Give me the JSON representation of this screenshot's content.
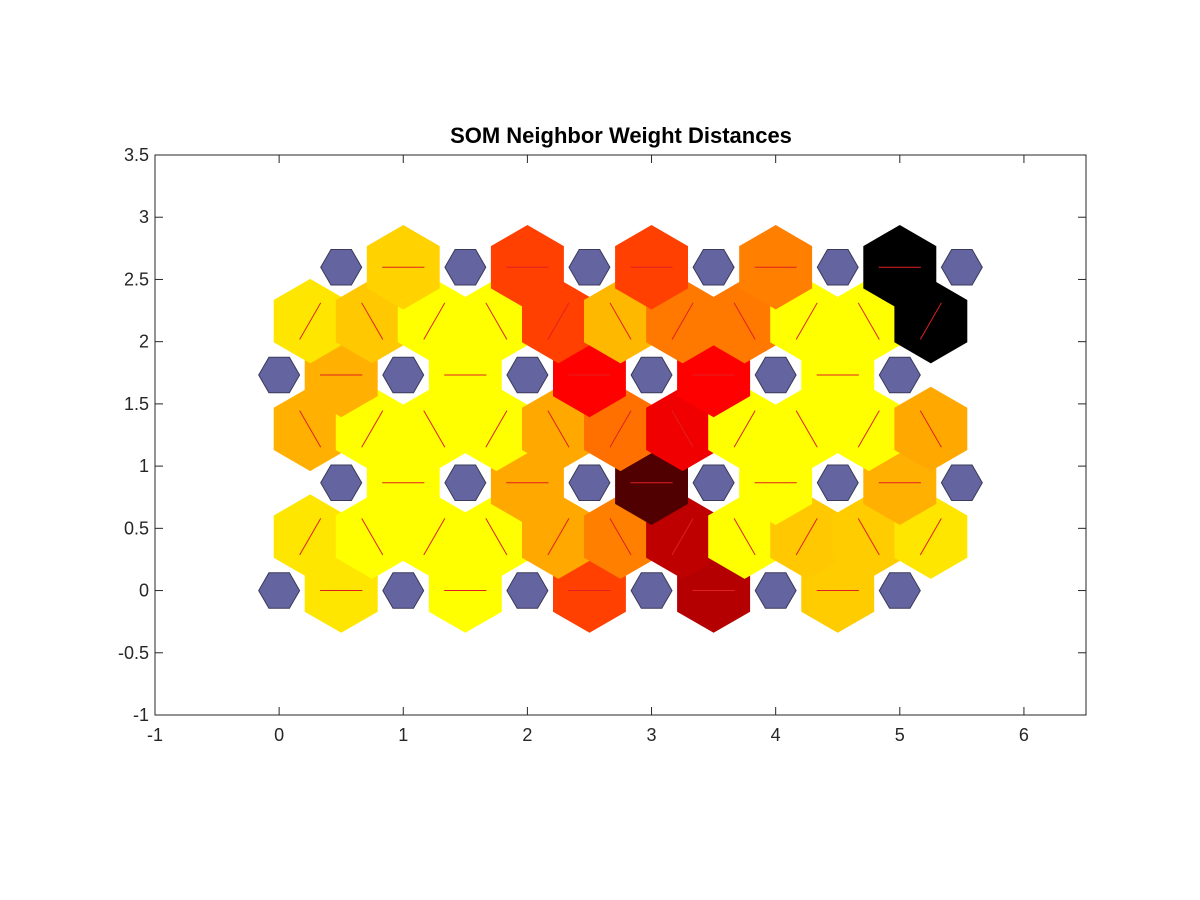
{
  "chart_data": {
    "type": "heatmap",
    "title": "SOM Neighbor Weight Distances",
    "xlabel": "",
    "ylabel": "",
    "xlim": [
      -1,
      6.5
    ],
    "ylim": [
      -1,
      3.5
    ],
    "x_ticks": [
      "-1",
      "0",
      "1",
      "2",
      "3",
      "4",
      "5",
      "6"
    ],
    "y_ticks": [
      "-1",
      "-0.5",
      "0",
      "0.5",
      "1",
      "1.5",
      "2",
      "2.5",
      "3",
      "3.5"
    ],
    "grid": false,
    "neuron_color": "#6464a0",
    "connection_line_color": "#e02020",
    "neurons": [
      {
        "x": 0,
        "y": 0
      },
      {
        "x": 1,
        "y": 0
      },
      {
        "x": 2,
        "y": 0
      },
      {
        "x": 3,
        "y": 0
      },
      {
        "x": 4,
        "y": 0
      },
      {
        "x": 5,
        "y": 0
      },
      {
        "x": 0.5,
        "y": 0.866
      },
      {
        "x": 1.5,
        "y": 0.866
      },
      {
        "x": 2.5,
        "y": 0.866
      },
      {
        "x": 3.5,
        "y": 0.866
      },
      {
        "x": 4.5,
        "y": 0.866
      },
      {
        "x": 5.5,
        "y": 0.866
      },
      {
        "x": 0,
        "y": 1.732
      },
      {
        "x": 1,
        "y": 1.732
      },
      {
        "x": 2,
        "y": 1.732
      },
      {
        "x": 3,
        "y": 1.732
      },
      {
        "x": 4,
        "y": 1.732
      },
      {
        "x": 5,
        "y": 1.732
      },
      {
        "x": 0.5,
        "y": 2.598
      },
      {
        "x": 1.5,
        "y": 2.598
      },
      {
        "x": 2.5,
        "y": 2.598
      },
      {
        "x": 3.5,
        "y": 2.598
      },
      {
        "x": 4.5,
        "y": 2.598
      },
      {
        "x": 5.5,
        "y": 2.598
      }
    ],
    "connections": [
      {
        "x1": 0,
        "y1": 0,
        "x2": 1,
        "y2": 0,
        "color": "#ffe600"
      },
      {
        "x1": 1,
        "y1": 0,
        "x2": 2,
        "y2": 0,
        "color": "#ffff00"
      },
      {
        "x1": 2,
        "y1": 0,
        "x2": 3,
        "y2": 0,
        "color": "#ff4000"
      },
      {
        "x1": 3,
        "y1": 0,
        "x2": 4,
        "y2": 0,
        "color": "#b40000"
      },
      {
        "x1": 4,
        "y1": 0,
        "x2": 5,
        "y2": 0,
        "color": "#ffcc00"
      },
      {
        "x1": 0,
        "y1": 0,
        "x2": 0.5,
        "y2": 0.866,
        "color": "#ffe600"
      },
      {
        "x1": 1,
        "y1": 0,
        "x2": 0.5,
        "y2": 0.866,
        "color": "#ffff00"
      },
      {
        "x1": 1,
        "y1": 0,
        "x2": 1.5,
        "y2": 0.866,
        "color": "#ffff00"
      },
      {
        "x1": 2,
        "y1": 0,
        "x2": 1.5,
        "y2": 0.866,
        "color": "#ffff00"
      },
      {
        "x1": 2,
        "y1": 0,
        "x2": 2.5,
        "y2": 0.866,
        "color": "#ffa800"
      },
      {
        "x1": 3,
        "y1": 0,
        "x2": 2.5,
        "y2": 0.866,
        "color": "#ff7f00"
      },
      {
        "x1": 3,
        "y1": 0,
        "x2": 3.5,
        "y2": 0.866,
        "color": "#bf0000"
      },
      {
        "x1": 4,
        "y1": 0,
        "x2": 3.5,
        "y2": 0.866,
        "color": "#ffff00"
      },
      {
        "x1": 4,
        "y1": 0,
        "x2": 4.5,
        "y2": 0.866,
        "color": "#ffc800"
      },
      {
        "x1": 5,
        "y1": 0,
        "x2": 4.5,
        "y2": 0.866,
        "color": "#ffcc00"
      },
      {
        "x1": 5,
        "y1": 0,
        "x2": 5.5,
        "y2": 0.866,
        "color": "#ffe600"
      },
      {
        "x1": 0.5,
        "y1": 0.866,
        "x2": 1.5,
        "y2": 0.866,
        "color": "#ffff00"
      },
      {
        "x1": 1.5,
        "y1": 0.866,
        "x2": 2.5,
        "y2": 0.866,
        "color": "#ffa800"
      },
      {
        "x1": 2.5,
        "y1": 0.866,
        "x2": 3.5,
        "y2": 0.866,
        "color": "#500000"
      },
      {
        "x1": 3.5,
        "y1": 0.866,
        "x2": 4.5,
        "y2": 0.866,
        "color": "#ffff00"
      },
      {
        "x1": 4.5,
        "y1": 0.866,
        "x2": 5.5,
        "y2": 0.866,
        "color": "#ffb000"
      },
      {
        "x1": 0.5,
        "y1": 0.866,
        "x2": 0,
        "y2": 1.732,
        "color": "#ffb000"
      },
      {
        "x1": 0.5,
        "y1": 0.866,
        "x2": 1,
        "y2": 1.732,
        "color": "#ffff00"
      },
      {
        "x1": 1.5,
        "y1": 0.866,
        "x2": 1,
        "y2": 1.732,
        "color": "#ffff00"
      },
      {
        "x1": 1.5,
        "y1": 0.866,
        "x2": 2,
        "y2": 1.732,
        "color": "#ffff00"
      },
      {
        "x1": 2.5,
        "y1": 0.866,
        "x2": 2,
        "y2": 1.732,
        "color": "#ffa800"
      },
      {
        "x1": 2.5,
        "y1": 0.866,
        "x2": 3,
        "y2": 1.732,
        "color": "#ff7000"
      },
      {
        "x1": 3.5,
        "y1": 0.866,
        "x2": 3,
        "y2": 1.732,
        "color": "#f00000"
      },
      {
        "x1": 3.5,
        "y1": 0.866,
        "x2": 4,
        "y2": 1.732,
        "color": "#ffff00"
      },
      {
        "x1": 4.5,
        "y1": 0.866,
        "x2": 4,
        "y2": 1.732,
        "color": "#ffff00"
      },
      {
        "x1": 4.5,
        "y1": 0.866,
        "x2": 5,
        "y2": 1.732,
        "color": "#ffff00"
      },
      {
        "x1": 5.5,
        "y1": 0.866,
        "x2": 5,
        "y2": 1.732,
        "color": "#ffa800"
      },
      {
        "x1": 0,
        "y1": 1.732,
        "x2": 1,
        "y2": 1.732,
        "color": "#ffb000"
      },
      {
        "x1": 1,
        "y1": 1.732,
        "x2": 2,
        "y2": 1.732,
        "color": "#ffff00"
      },
      {
        "x1": 2,
        "y1": 1.732,
        "x2": 3,
        "y2": 1.732,
        "color": "#ff0000"
      },
      {
        "x1": 3,
        "y1": 1.732,
        "x2": 4,
        "y2": 1.732,
        "color": "#ff0000"
      },
      {
        "x1": 4,
        "y1": 1.732,
        "x2": 5,
        "y2": 1.732,
        "color": "#ffff00"
      },
      {
        "x1": 0,
        "y1": 1.732,
        "x2": 0.5,
        "y2": 2.598,
        "color": "#ffe600"
      },
      {
        "x1": 1,
        "y1": 1.732,
        "x2": 0.5,
        "y2": 2.598,
        "color": "#ffc800"
      },
      {
        "x1": 1,
        "y1": 1.732,
        "x2": 1.5,
        "y2": 2.598,
        "color": "#ffff00"
      },
      {
        "x1": 2,
        "y1": 1.732,
        "x2": 1.5,
        "y2": 2.598,
        "color": "#ffff00"
      },
      {
        "x1": 2,
        "y1": 1.732,
        "x2": 2.5,
        "y2": 2.598,
        "color": "#ff4000"
      },
      {
        "x1": 3,
        "y1": 1.732,
        "x2": 2.5,
        "y2": 2.598,
        "color": "#ffb800"
      },
      {
        "x1": 3,
        "y1": 1.732,
        "x2": 3.5,
        "y2": 2.598,
        "color": "#ff7800"
      },
      {
        "x1": 4,
        "y1": 1.732,
        "x2": 3.5,
        "y2": 2.598,
        "color": "#ff7800"
      },
      {
        "x1": 4,
        "y1": 1.732,
        "x2": 4.5,
        "y2": 2.598,
        "color": "#ffff00"
      },
      {
        "x1": 5,
        "y1": 1.732,
        "x2": 4.5,
        "y2": 2.598,
        "color": "#ffff00"
      },
      {
        "x1": 5,
        "y1": 1.732,
        "x2": 5.5,
        "y2": 2.598,
        "color": "#000000"
      },
      {
        "x1": 0.5,
        "y1": 2.598,
        "x2": 1.5,
        "y2": 2.598,
        "color": "#ffd200"
      },
      {
        "x1": 1.5,
        "y1": 2.598,
        "x2": 2.5,
        "y2": 2.598,
        "color": "#ff4000"
      },
      {
        "x1": 2.5,
        "y1": 2.598,
        "x2": 3.5,
        "y2": 2.598,
        "color": "#ff4000"
      },
      {
        "x1": 3.5,
        "y1": 2.598,
        "x2": 4.5,
        "y2": 2.598,
        "color": "#ff7f00"
      },
      {
        "x1": 4.5,
        "y1": 2.598,
        "x2": 5.5,
        "y2": 2.598,
        "color": "#000000"
      }
    ]
  }
}
